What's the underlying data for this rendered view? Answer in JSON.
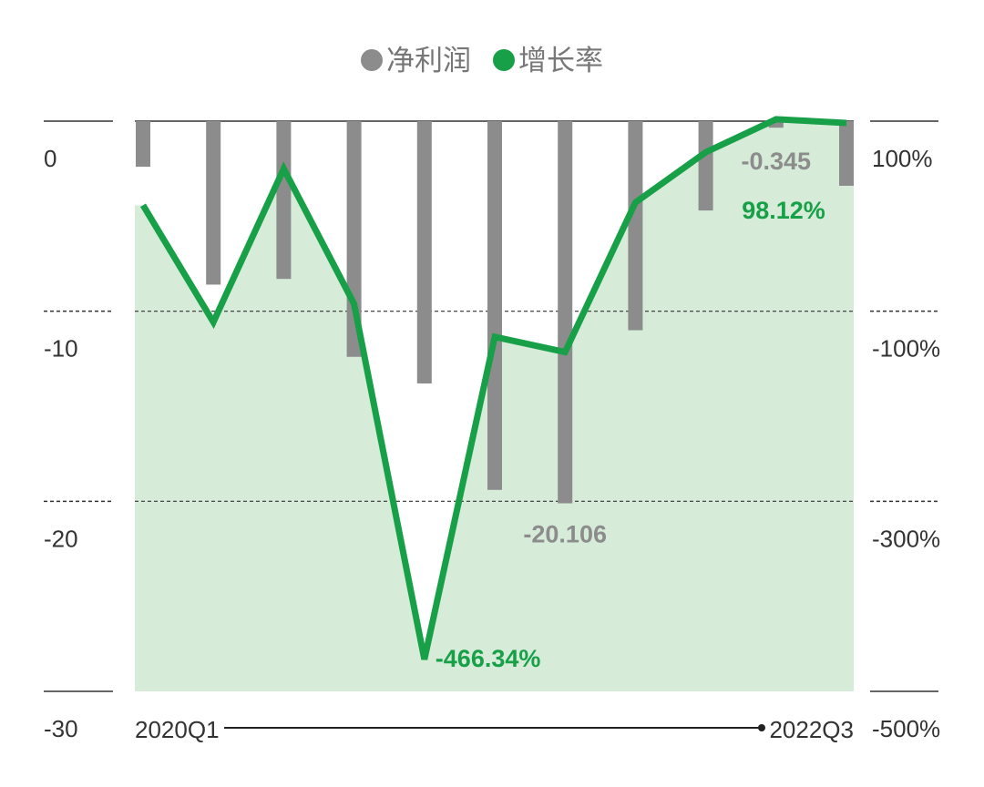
{
  "chart_data": {
    "type": "bar-line",
    "categories": [
      "2020Q1",
      null,
      null,
      null,
      null,
      null,
      null,
      null,
      null,
      null,
      "2022Q3"
    ],
    "series": [
      {
        "name": "净利润",
        "type": "bar",
        "color": "#8c8c8c",
        "values": [
          -2.4,
          -8.6,
          -8.3,
          -12.4,
          -13.8,
          -19.4,
          -20.106,
          -11.0,
          -4.7,
          -0.345,
          -3.4
        ],
        "value_labels": [
          null,
          null,
          null,
          null,
          null,
          null,
          "-20.106",
          null,
          null,
          "-0.345",
          null
        ]
      },
      {
        "name": "增长率",
        "type": "line",
        "axis": "y2",
        "color": "#18a048",
        "values": [
          11.5,
          -111.5,
          50,
          -92.3,
          -466.34,
          -127,
          -143,
          14.4,
          67.3,
          102,
          98.12
        ],
        "value_labels": [
          null,
          null,
          null,
          null,
          "-466.34%",
          null,
          null,
          null,
          null,
          null,
          "98.12%"
        ]
      }
    ],
    "ylim": [
      -30,
      0
    ],
    "yticks": [
      0,
      -10,
      -20,
      -30
    ],
    "y2lim": [
      -500,
      100
    ],
    "y2ticks": [
      {
        "value": 100,
        "label": "100%"
      },
      {
        "value": -100,
        "label": "-100%"
      },
      {
        "value": -300,
        "label": "-300%"
      },
      {
        "value": -500,
        "label": "-500%"
      }
    ],
    "grid": true
  }
}
